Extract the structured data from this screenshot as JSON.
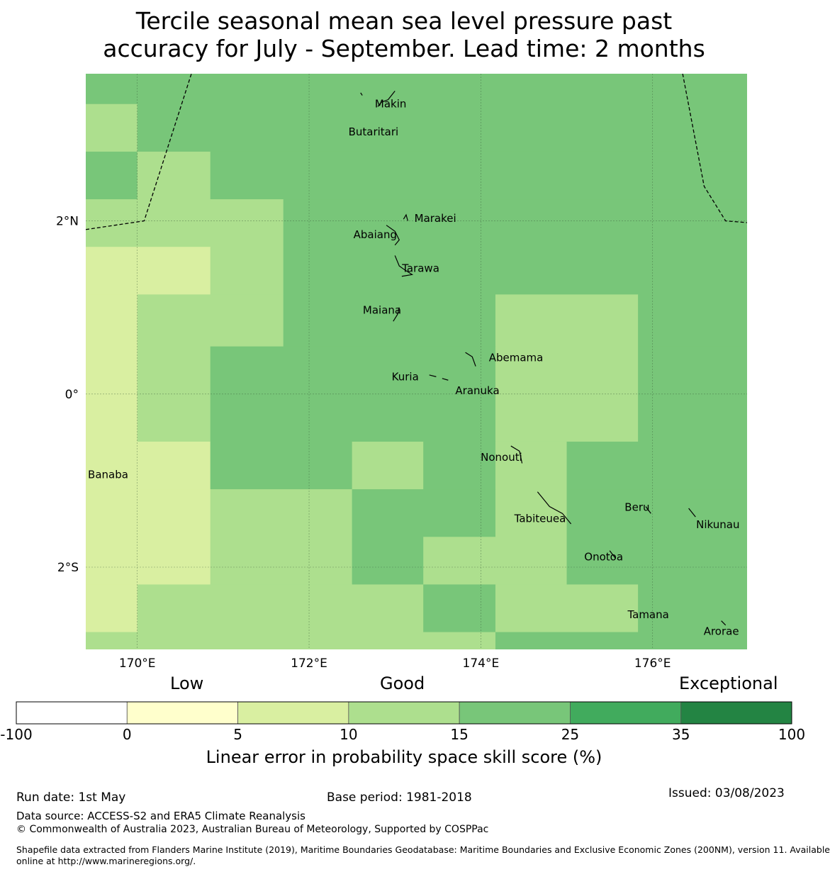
{
  "title": {
    "line1": "Tercile seasonal mean sea level pressure past",
    "line2": "accuracy for July - September. Lead time: 2 months"
  },
  "colors": {
    "c5_10": "#d9efa1",
    "c10_15": "#addf8e",
    "c15_25": "#78c679",
    "c25_35": "#41ab5d",
    "c35_100": "#238443",
    "c0_5": "#ffffcc",
    "cneg": "#ffffff"
  },
  "map": {
    "extent": {
      "lon_min": 169.4,
      "lon_max": 177.1,
      "lat_min": -2.95,
      "lat_max": 3.7
    },
    "grid_rows": [
      {
        "lat_top": 3.7,
        "lat_bot": 3.35,
        "cells": [
          [
            169.4,
            177.1,
            "c15_25"
          ]
        ]
      },
      {
        "lat_top": 3.35,
        "lat_bot": 2.8,
        "cells": [
          [
            169.4,
            170.0,
            "c10_15"
          ],
          [
            170.0,
            177.1,
            "c15_25"
          ]
        ]
      },
      {
        "lat_top": 2.8,
        "lat_bot": 2.25,
        "cells": [
          [
            169.4,
            170.0,
            "c15_25"
          ],
          [
            170.0,
            170.85,
            "c10_15"
          ],
          [
            170.85,
            177.1,
            "c15_25"
          ]
        ]
      },
      {
        "lat_top": 2.25,
        "lat_bot": 1.7,
        "cells": [
          [
            169.4,
            171.7,
            "c10_15"
          ],
          [
            171.7,
            177.1,
            "c15_25"
          ]
        ]
      },
      {
        "lat_top": 1.7,
        "lat_bot": 1.15,
        "cells": [
          [
            169.4,
            170.0,
            "c5_10"
          ],
          [
            170.0,
            170.85,
            "c5_10"
          ],
          [
            170.85,
            171.7,
            "c10_15"
          ],
          [
            171.7,
            177.1,
            "c15_25"
          ]
        ]
      },
      {
        "lat_top": 1.15,
        "lat_bot": 0.55,
        "cells": [
          [
            169.4,
            170.0,
            "c5_10"
          ],
          [
            170.0,
            171.7,
            "c10_15"
          ],
          [
            171.7,
            174.17,
            "c15_25"
          ],
          [
            174.17,
            175.83,
            "c10_15"
          ],
          [
            175.83,
            177.1,
            "c15_25"
          ]
        ]
      },
      {
        "lat_top": 0.55,
        "lat_bot": -0.55,
        "cells": [
          [
            169.4,
            170.0,
            "c5_10"
          ],
          [
            170.0,
            170.85,
            "c10_15"
          ],
          [
            170.85,
            174.17,
            "c15_25"
          ],
          [
            174.17,
            175.83,
            "c10_15"
          ],
          [
            175.83,
            177.1,
            "c15_25"
          ]
        ]
      },
      {
        "lat_top": -0.55,
        "lat_bot": -1.1,
        "cells": [
          [
            169.4,
            170.85,
            "c5_10"
          ],
          [
            170.85,
            172.5,
            "c15_25"
          ],
          [
            172.5,
            173.33,
            "c10_15"
          ],
          [
            173.33,
            174.17,
            "c15_25"
          ],
          [
            174.17,
            175.0,
            "c10_15"
          ],
          [
            175.0,
            177.1,
            "c15_25"
          ]
        ]
      },
      {
        "lat_top": -1.1,
        "lat_bot": -1.65,
        "cells": [
          [
            169.4,
            170.85,
            "c5_10"
          ],
          [
            170.85,
            172.5,
            "c10_15"
          ],
          [
            172.5,
            174.17,
            "c15_25"
          ],
          [
            174.17,
            175.0,
            "c10_15"
          ],
          [
            175.0,
            177.1,
            "c15_25"
          ]
        ]
      },
      {
        "lat_top": -1.65,
        "lat_bot": -2.2,
        "cells": [
          [
            169.4,
            170.85,
            "c5_10"
          ],
          [
            170.85,
            172.5,
            "c10_15"
          ],
          [
            172.5,
            173.33,
            "c15_25"
          ],
          [
            173.33,
            175.0,
            "c10_15"
          ],
          [
            175.0,
            177.1,
            "c15_25"
          ]
        ]
      },
      {
        "lat_top": -2.2,
        "lat_bot": -2.75,
        "cells": [
          [
            169.4,
            170.0,
            "c5_10"
          ],
          [
            170.0,
            173.33,
            "c10_15"
          ],
          [
            173.33,
            174.17,
            "c15_25"
          ],
          [
            174.17,
            175.83,
            "c10_15"
          ],
          [
            175.83,
            177.1,
            "c15_25"
          ]
        ]
      },
      {
        "lat_top": -2.75,
        "lat_bot": -2.95,
        "cells": [
          [
            169.4,
            170.0,
            "c10_15"
          ],
          [
            170.0,
            174.17,
            "c10_15"
          ],
          [
            174.17,
            177.1,
            "c15_25"
          ]
        ]
      }
    ],
    "lon_ticks": [
      {
        "value": 170,
        "label": "170°E"
      },
      {
        "value": 172,
        "label": "172°E"
      },
      {
        "value": 174,
        "label": "174°E"
      },
      {
        "value": 176,
        "label": "176°E"
      }
    ],
    "lat_ticks": [
      {
        "value": 2,
        "label": "2°N"
      },
      {
        "value": 0,
        "label": "0°"
      },
      {
        "value": -2,
        "label": "2°S"
      }
    ],
    "eez_boundaries": [
      [
        [
          169.4,
          1.9
        ],
        [
          170.08,
          2.0
        ],
        [
          170.63,
          3.7
        ]
      ],
      [
        [
          176.35,
          3.7
        ],
        [
          176.6,
          2.4
        ],
        [
          176.85,
          2.0
        ],
        [
          177.1,
          1.98
        ]
      ]
    ],
    "places": [
      {
        "name": "Makin",
        "lon": 172.95,
        "lat": 3.35
      },
      {
        "name": "Butaritari",
        "lon": 172.75,
        "lat": 3.03
      },
      {
        "name": "Marakei",
        "lon": 173.47,
        "lat": 2.03
      },
      {
        "name": "Abaiang",
        "lon": 172.77,
        "lat": 1.84
      },
      {
        "name": "Tarawa",
        "lon": 173.3,
        "lat": 1.45
      },
      {
        "name": "Maiana",
        "lon": 172.85,
        "lat": 0.97
      },
      {
        "name": "Abemama",
        "lon": 174.41,
        "lat": 0.42
      },
      {
        "name": "Kuria",
        "lon": 173.12,
        "lat": 0.2
      },
      {
        "name": "Aranuka",
        "lon": 173.96,
        "lat": 0.04
      },
      {
        "name": "Nonouti",
        "lon": 174.24,
        "lat": -0.73
      },
      {
        "name": "Banaba",
        "lon": 169.66,
        "lat": -0.93
      },
      {
        "name": "Beru",
        "lon": 175.82,
        "lat": -1.31
      },
      {
        "name": "Tabiteuea",
        "lon": 174.69,
        "lat": -1.44
      },
      {
        "name": "Nikunau",
        "lon": 176.76,
        "lat": -1.51
      },
      {
        "name": "Onotoa",
        "lon": 175.43,
        "lat": -1.88
      },
      {
        "name": "Tamana",
        "lon": 175.95,
        "lat": -2.55
      },
      {
        "name": "Arorae",
        "lon": 176.8,
        "lat": -2.74
      }
    ],
    "islands": [
      [
        [
          173.0,
          3.5
        ],
        [
          172.92,
          3.4
        ],
        [
          172.84,
          3.37
        ],
        [
          172.8,
          3.32
        ]
      ],
      [
        [
          172.6,
          3.48
        ],
        [
          172.62,
          3.45
        ]
      ],
      [
        [
          173.1,
          2.02
        ],
        [
          173.13,
          2.07
        ],
        [
          173.15,
          2.0
        ]
      ],
      [
        [
          172.9,
          1.95
        ],
        [
          173.0,
          1.88
        ],
        [
          173.05,
          1.78
        ],
        [
          173.0,
          1.72
        ]
      ],
      [
        [
          173.0,
          1.6
        ],
        [
          173.05,
          1.48
        ],
        [
          173.12,
          1.43
        ],
        [
          173.2,
          1.38
        ],
        [
          173.08,
          1.36
        ]
      ],
      [
        [
          173.05,
          1.0
        ],
        [
          173.03,
          0.92
        ],
        [
          172.98,
          0.84
        ]
      ],
      [
        [
          173.82,
          0.48
        ],
        [
          173.9,
          0.43
        ],
        [
          173.94,
          0.32
        ]
      ],
      [
        [
          173.55,
          0.18
        ],
        [
          173.62,
          0.16
        ]
      ],
      [
        [
          173.4,
          0.22
        ],
        [
          173.48,
          0.2
        ]
      ],
      [
        [
          174.35,
          -0.6
        ],
        [
          174.45,
          -0.66
        ],
        [
          174.48,
          -0.8
        ]
      ],
      [
        [
          174.66,
          -1.13
        ],
        [
          174.8,
          -1.3
        ],
        [
          174.95,
          -1.38
        ],
        [
          175.05,
          -1.5
        ]
      ],
      [
        [
          175.92,
          -1.3
        ],
        [
          175.98,
          -1.38
        ]
      ],
      [
        [
          176.42,
          -1.32
        ],
        [
          176.5,
          -1.42
        ]
      ],
      [
        [
          175.5,
          -1.81
        ],
        [
          175.57,
          -1.9
        ]
      ],
      [
        [
          176.8,
          -2.62
        ],
        [
          176.85,
          -2.67
        ]
      ]
    ]
  },
  "colorbar": {
    "word_low": "Low",
    "word_good": "Good",
    "word_exceptional": "Exceptional",
    "bins": [
      {
        "from": "-100",
        "to": "0",
        "color": "cneg"
      },
      {
        "from": "0",
        "to": "5",
        "color": "c0_5"
      },
      {
        "from": "5",
        "to": "10",
        "color": "c5_10"
      },
      {
        "from": "10",
        "to": "15",
        "color": "c10_15"
      },
      {
        "from": "15",
        "to": "25",
        "color": "c15_25"
      },
      {
        "from": "25",
        "to": "35",
        "color": "c25_35"
      },
      {
        "from": "35",
        "to": "100",
        "color": "c35_100"
      }
    ],
    "tick_labels": [
      "-100",
      "0",
      "5",
      "10",
      "15",
      "25",
      "35",
      "100"
    ],
    "title": "Linear error in probability space skill score (%)"
  },
  "footer": {
    "run_date": "Run date: 1st May",
    "base_period": "Base period: 1981-2018",
    "issued": "Issued: 03/08/2023",
    "data_source": "Data source: ACCESS-S2 and ERA5 Climate Reanalysis",
    "copyright": "© Commonwealth of Australia 2023, Australian Bureau of Meteorology, Supported by COSPPac",
    "shapefile_line1": "Shapefile data extracted from Flanders Marine Institute (2019), Maritime Boundaries Geodatabase: Maritime Boundaries and Exclusive Economic Zones (200NM), version 11. Available",
    "shapefile_line2": "online at http://www.marineregions.org/."
  }
}
